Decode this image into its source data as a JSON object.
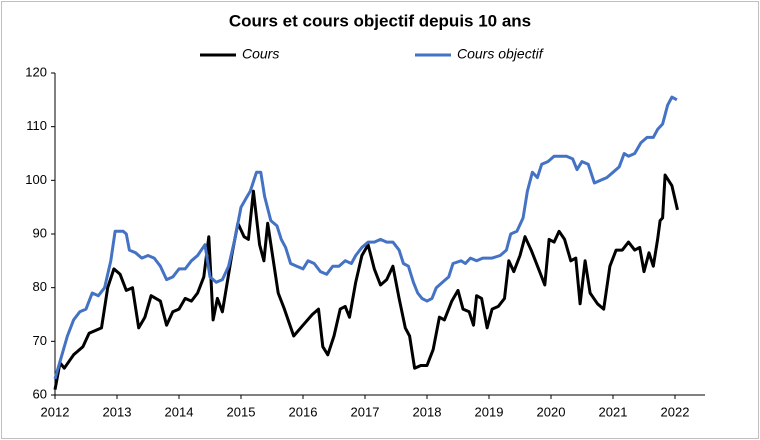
{
  "chart_data": {
    "type": "line",
    "title": "Cours et cours objectif depuis 10 ans",
    "xlim": [
      2012,
      2022
    ],
    "xticks": [
      2012,
      2013,
      2014,
      2015,
      2016,
      2017,
      2018,
      2019,
      2020,
      2021,
      2022
    ],
    "ylim": [
      60,
      120
    ],
    "yticks": [
      60,
      70,
      80,
      90,
      100,
      110,
      120
    ],
    "grid": false,
    "legend": "top",
    "series": [
      {
        "name": "Cours",
        "color": "#000000",
        "x": [
          2012.0,
          2012.08,
          2012.15,
          2012.3,
          2012.45,
          2012.55,
          2012.75,
          2012.85,
          2012.95,
          2013.05,
          2013.15,
          2013.25,
          2013.35,
          2013.45,
          2013.55,
          2013.7,
          2013.8,
          2013.9,
          2014.0,
          2014.1,
          2014.2,
          2014.3,
          2014.4,
          2014.48,
          2014.55,
          2014.62,
          2014.7,
          2014.85,
          2014.95,
          2015.05,
          2015.12,
          2015.2,
          2015.3,
          2015.37,
          2015.43,
          2015.6,
          2015.7,
          2015.85,
          2016.0,
          2016.15,
          2016.25,
          2016.32,
          2016.4,
          2016.5,
          2016.6,
          2016.68,
          2016.75,
          2016.85,
          2016.95,
          2017.05,
          2017.15,
          2017.25,
          2017.35,
          2017.45,
          2017.55,
          2017.65,
          2017.72,
          2017.8,
          2017.9,
          2018.0,
          2018.1,
          2018.2,
          2018.28,
          2018.4,
          2018.5,
          2018.58,
          2018.68,
          2018.75,
          2018.8,
          2018.88,
          2018.97,
          2019.05,
          2019.15,
          2019.25,
          2019.32,
          2019.4,
          2019.5,
          2019.58,
          2019.68,
          2019.8,
          2019.9,
          2019.97,
          2020.05,
          2020.13,
          2020.22,
          2020.32,
          2020.4,
          2020.47,
          2020.55,
          2020.63,
          2020.75,
          2020.85,
          2020.95,
          2021.05,
          2021.15,
          2021.25,
          2021.35,
          2021.43,
          2021.5,
          2021.58,
          2021.65,
          2021.72,
          2021.76,
          2021.8,
          2021.84,
          2021.95,
          2022.04
        ],
        "values": [
          61,
          66,
          65,
          67.5,
          69,
          71.5,
          72.5,
          80,
          83.5,
          82.5,
          79.5,
          80,
          72.5,
          74.5,
          78.5,
          77.5,
          73,
          75.5,
          76,
          78,
          77.5,
          79,
          82,
          89.5,
          74,
          78,
          75.5,
          86,
          92,
          89.5,
          89,
          98,
          88,
          85,
          92,
          79,
          76,
          71,
          73,
          75,
          76,
          69,
          67.5,
          71,
          76,
          76.5,
          74.5,
          81,
          86,
          88,
          83.5,
          80.5,
          81.5,
          84,
          78,
          72.5,
          71,
          65,
          65.5,
          65.5,
          68.5,
          74.5,
          74,
          77.5,
          79.5,
          76,
          75.5,
          73,
          78.5,
          78,
          72.5,
          76,
          76.5,
          78,
          85,
          83,
          86,
          89.5,
          87,
          83.5,
          80.5,
          89,
          88.5,
          90.5,
          89,
          85,
          85.5,
          77,
          85,
          79,
          77,
          76,
          84,
          87,
          87,
          88.5,
          87,
          87.5,
          83,
          86.5,
          84,
          89,
          92.5,
          93,
          101,
          99,
          94.5
        ]
      },
      {
        "name": "Cours objectif",
        "color": "#4472c4",
        "x": [
          2012.0,
          2012.1,
          2012.2,
          2012.3,
          2012.4,
          2012.5,
          2012.6,
          2012.7,
          2012.8,
          2012.9,
          2012.97,
          2013.1,
          2013.15,
          2013.2,
          2013.3,
          2013.4,
          2013.5,
          2013.6,
          2013.7,
          2013.8,
          2013.9,
          2014.0,
          2014.1,
          2014.2,
          2014.3,
          2014.42,
          2014.5,
          2014.6,
          2014.7,
          2014.8,
          2014.9,
          2015.0,
          2015.1,
          2015.15,
          2015.25,
          2015.32,
          2015.38,
          2015.48,
          2015.58,
          2015.65,
          2015.72,
          2015.8,
          2015.9,
          2016.0,
          2016.08,
          2016.18,
          2016.28,
          2016.38,
          2016.48,
          2016.58,
          2016.68,
          2016.78,
          2016.85,
          2016.95,
          2017.05,
          2017.15,
          2017.25,
          2017.35,
          2017.45,
          2017.55,
          2017.62,
          2017.7,
          2017.78,
          2017.85,
          2017.92,
          2018.0,
          2018.08,
          2018.15,
          2018.25,
          2018.35,
          2018.42,
          2018.55,
          2018.62,
          2018.7,
          2018.8,
          2018.9,
          2019.05,
          2019.18,
          2019.28,
          2019.35,
          2019.45,
          2019.55,
          2019.62,
          2019.7,
          2019.78,
          2019.85,
          2019.95,
          2020.05,
          2020.15,
          2020.25,
          2020.35,
          2020.42,
          2020.5,
          2020.6,
          2020.7,
          2020.8,
          2020.9,
          2021.0,
          2021.1,
          2021.18,
          2021.25,
          2021.35,
          2021.45,
          2021.55,
          2021.65,
          2021.72,
          2021.8,
          2021.88,
          2021.95,
          2022.03
        ],
        "values": [
          63,
          67,
          71,
          74,
          75.5,
          76,
          79,
          78.5,
          80,
          85,
          90.5,
          90.5,
          90,
          87,
          86.5,
          85.5,
          86,
          85.5,
          84,
          81.5,
          82,
          83.5,
          83.5,
          85,
          86,
          88,
          82,
          81,
          81.5,
          84,
          89,
          95,
          97,
          98,
          101.5,
          101.5,
          97,
          92.5,
          91.5,
          89,
          87.5,
          84.5,
          84,
          83.5,
          85,
          84.5,
          83,
          82.5,
          84,
          84,
          85,
          84.5,
          86,
          87.5,
          88.5,
          88.5,
          89,
          88.5,
          88.5,
          87,
          84.5,
          84,
          81,
          79,
          78,
          77.5,
          78,
          80,
          81,
          82,
          84.5,
          85,
          84.5,
          85.5,
          85,
          85.5,
          85.5,
          86,
          87,
          90,
          90.5,
          93,
          98,
          101.5,
          100.5,
          103,
          103.5,
          104.5,
          104.5,
          104.5,
          104,
          102,
          103.5,
          103,
          99.5,
          100,
          100.5,
          101.5,
          102.5,
          105,
          104.5,
          105,
          107,
          108,
          108,
          109.5,
          110.5,
          114,
          115.5,
          115
        ]
      }
    ]
  }
}
